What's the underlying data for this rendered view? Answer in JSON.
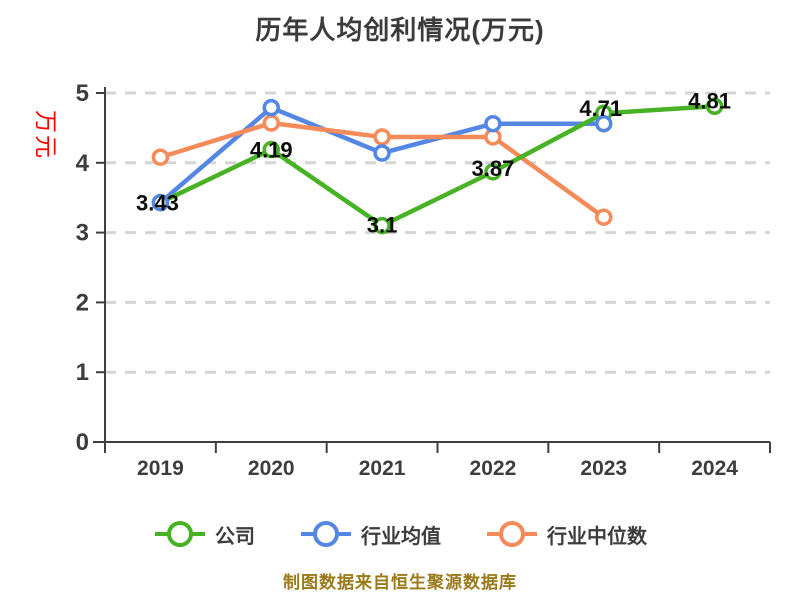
{
  "title": "历年人均创利情况(万元)",
  "y_axis_label": "万元",
  "footer": "制图数据来自恒生聚源数据库",
  "colors": {
    "company": "#47b224",
    "industry_avg": "#5486e4",
    "industry_median": "#f68b5a",
    "grid": "#d5d5d5",
    "axis": "#3f3f3f",
    "tick_text": "#3d3d3d",
    "point_label": "#0d0d0d",
    "marker_fill": "#ffffff",
    "title_text": "#3b3b3b",
    "y_axis_label_text": "#ff0000",
    "footer_text": "#9a7a1a"
  },
  "chart_data": {
    "type": "line",
    "categories": [
      "2019",
      "2020",
      "2021",
      "2022",
      "2023",
      "2024"
    ],
    "series": [
      {
        "name": "公司",
        "color_key": "company",
        "values": [
          3.43,
          4.19,
          3.1,
          3.87,
          4.71,
          4.81
        ],
        "point_labels": [
          "3.43",
          "4.19",
          "3.1",
          "3.87",
          "4.71",
          "4.81"
        ]
      },
      {
        "name": "行业均值",
        "color_key": "industry_avg",
        "values": [
          3.43,
          4.79,
          4.14,
          4.56,
          4.56,
          null
        ],
        "point_labels": null
      },
      {
        "name": "行业中位数",
        "color_key": "industry_median",
        "values": [
          4.08,
          4.57,
          4.37,
          4.37,
          3.22,
          null
        ],
        "point_labels": null
      }
    ],
    "ylim": [
      0,
      5
    ],
    "y_ticks": [
      0,
      1,
      2,
      3,
      4,
      5
    ],
    "grid": "horizontal dashed",
    "legend_position": "bottom",
    "title": "历年人均创利情况(万元)",
    "ylabel": "万元"
  },
  "legend": {
    "items": [
      {
        "label": "公司",
        "color_key": "company"
      },
      {
        "label": "行业均值",
        "color_key": "industry_avg"
      },
      {
        "label": "行业中位数",
        "color_key": "industry_median"
      }
    ]
  }
}
